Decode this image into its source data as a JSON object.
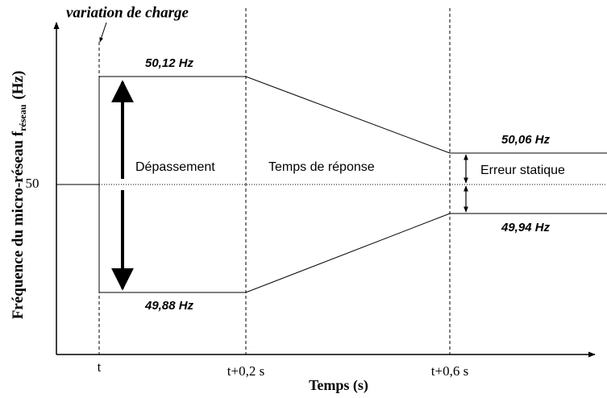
{
  "annotation": "variation de charge",
  "y_axis": {
    "label": "Fréquence du micro-réseau f",
    "subscript": "réseau",
    "unit": "(Hz)",
    "tick": "50"
  },
  "x_axis": {
    "label": "Temps (s)",
    "ticks": [
      "t",
      "t+0,2 s",
      "t+0,6 s"
    ]
  },
  "levels": {
    "max": "50,12 Hz",
    "min": "49,88 Hz",
    "upper_band": "50,06 Hz",
    "lower_band": "49,94 Hz"
  },
  "regions": {
    "overshoot": "Dépassement",
    "response_time": "Temps de réponse",
    "static_error": "Erreur statique"
  }
}
